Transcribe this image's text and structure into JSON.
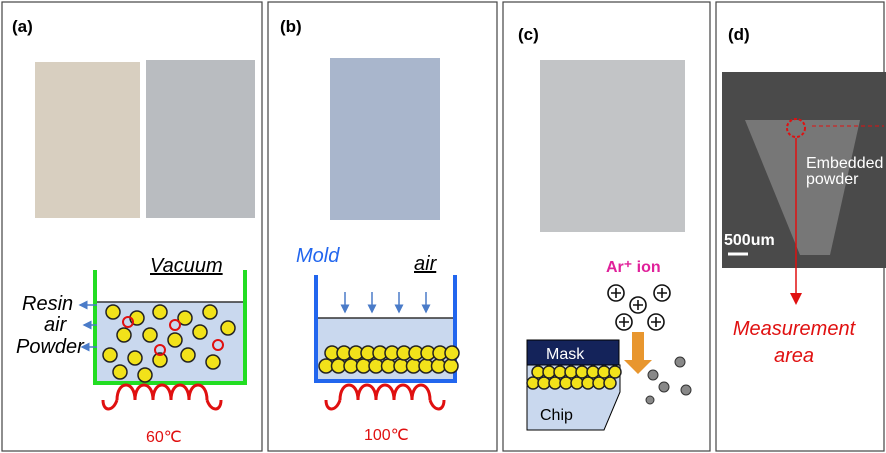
{
  "panel_a": {
    "label": "(a)",
    "vacuum": "Vacuum",
    "resin": "Resin",
    "air": "air",
    "powder": "Powder",
    "temperature": "60℃"
  },
  "panel_b": {
    "label": "(b)",
    "mold": "Mold",
    "air": "air",
    "temperature": "100℃"
  },
  "panel_c": {
    "label": "(c)",
    "ion": "Ar⁺ ion",
    "mask": "Mask",
    "chip": "Chip"
  },
  "panel_d": {
    "label": "(d)",
    "embedded": [
      "Embedded",
      "powder"
    ],
    "scale": "500um",
    "measurement": [
      "Measurement",
      "area"
    ]
  }
}
